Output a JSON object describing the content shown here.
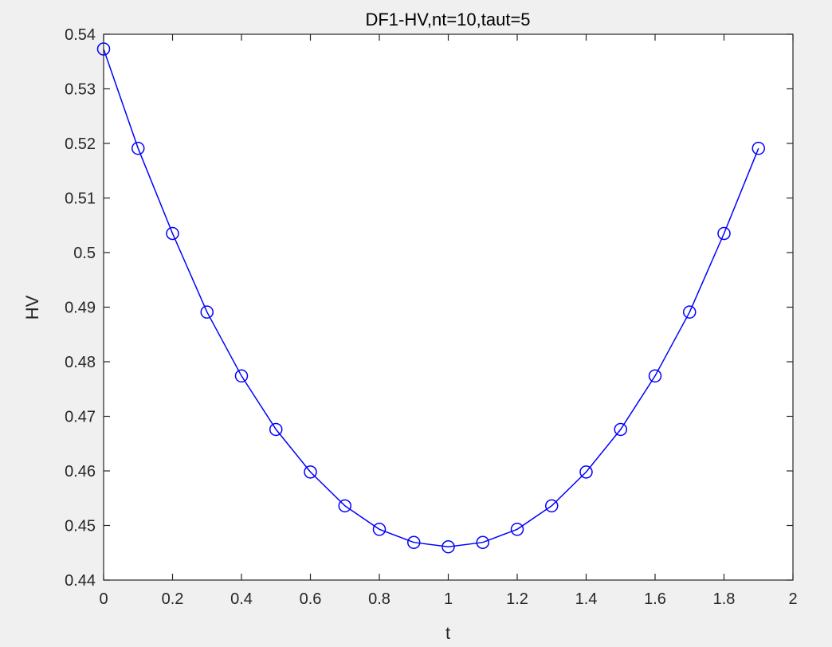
{
  "chart_data": {
    "type": "line",
    "title": "DF1-HV,nt=10,taut=5",
    "xlabel": "t",
    "ylabel": "HV",
    "xlim": [
      0,
      2
    ],
    "ylim": [
      0.44,
      0.54
    ],
    "x_ticks": [
      0,
      0.2,
      0.4,
      0.6,
      0.8,
      1,
      1.2,
      1.4,
      1.6,
      1.8,
      2
    ],
    "x_tick_labels": [
      "0",
      "0.2",
      "0.4",
      "0.6",
      "0.8",
      "1",
      "1.2",
      "1.4",
      "1.6",
      "1.8",
      "2"
    ],
    "y_ticks": [
      0.44,
      0.45,
      0.46,
      0.47,
      0.48,
      0.49,
      0.5,
      0.51,
      0.52,
      0.53,
      0.54
    ],
    "y_tick_labels": [
      "0.44",
      "0.45",
      "0.46",
      "0.47",
      "0.48",
      "0.49",
      "0.5",
      "0.51",
      "0.52",
      "0.53",
      "0.54"
    ],
    "grid": false,
    "series": [
      {
        "marker": "circle",
        "color": "#0000ff",
        "x": [
          0,
          0.1,
          0.2,
          0.3,
          0.4,
          0.5,
          0.6,
          0.7,
          0.8,
          0.9,
          1.0,
          1.1,
          1.2,
          1.3,
          1.4,
          1.5,
          1.6,
          1.7,
          1.8,
          1.9
        ],
        "y": [
          0.5373,
          0.5191,
          0.5035,
          0.4891,
          0.4774,
          0.4676,
          0.4598,
          0.4536,
          0.4493,
          0.4469,
          0.4461,
          0.4469,
          0.4493,
          0.4536,
          0.4598,
          0.4676,
          0.4774,
          0.4891,
          0.5035,
          0.5191
        ]
      }
    ]
  },
  "colors": {
    "figure_background": "#f0f0f0",
    "axes_background": "#ffffff",
    "axes_color": "#262626",
    "line_color": "#0000ff"
  }
}
